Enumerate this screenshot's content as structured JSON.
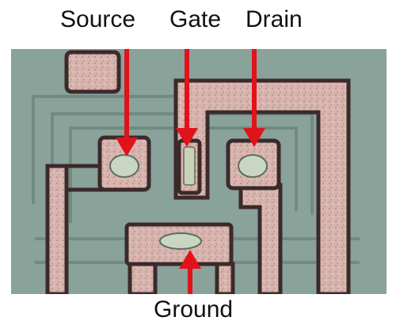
{
  "labels": {
    "source": "Source",
    "gate": "Gate",
    "drain": "Drain",
    "ground": "Ground"
  },
  "colors": {
    "substrate": "#8aa39b",
    "metal": "#d9b5b0",
    "metal_edge": "#3b2a2a",
    "contact": "#cfd7c0",
    "arrow": "#e0131b"
  }
}
